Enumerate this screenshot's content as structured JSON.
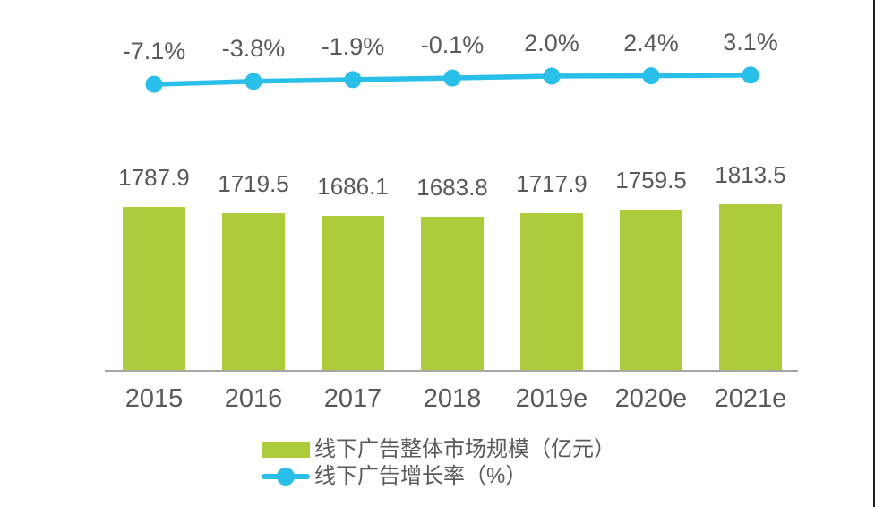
{
  "chart_data": {
    "type": "bar",
    "subtype": "bar-line-combo",
    "title": "",
    "xlabel": "",
    "ylabel": "",
    "grid": false,
    "legend_position": "bottom-center",
    "data_labels_shown": true,
    "categories": [
      "2015",
      "2016",
      "2017",
      "2018",
      "2019e",
      "2020e",
      "2021e"
    ],
    "series": [
      {
        "name": "线下广告整体市场规模（亿元）",
        "type": "bar",
        "values": [
          1787.9,
          1719.5,
          1686.1,
          1683.8,
          1717.9,
          1759.5,
          1813.5
        ],
        "point_labels": [
          "1787.9",
          "1719.5",
          "1686.1",
          "1683.8",
          "1717.9",
          "1759.5",
          "1813.5"
        ],
        "color": "#ACCC3C"
      },
      {
        "name": "线下广告增长率（%）",
        "type": "line",
        "values": [
          -7.1,
          -3.8,
          -1.9,
          -0.1,
          2.0,
          2.4,
          3.1
        ],
        "point_labels": [
          "-7.1%",
          "-3.8%",
          "-1.9%",
          "-0.1%",
          "2.0%",
          "2.4%",
          "3.1%"
        ],
        "color": "#29BFE8"
      }
    ],
    "colors": {
      "text": "#595959",
      "axis": "#A6A6A6",
      "background": "#FFFFFF",
      "page_edge": "#1F1F1F"
    }
  }
}
